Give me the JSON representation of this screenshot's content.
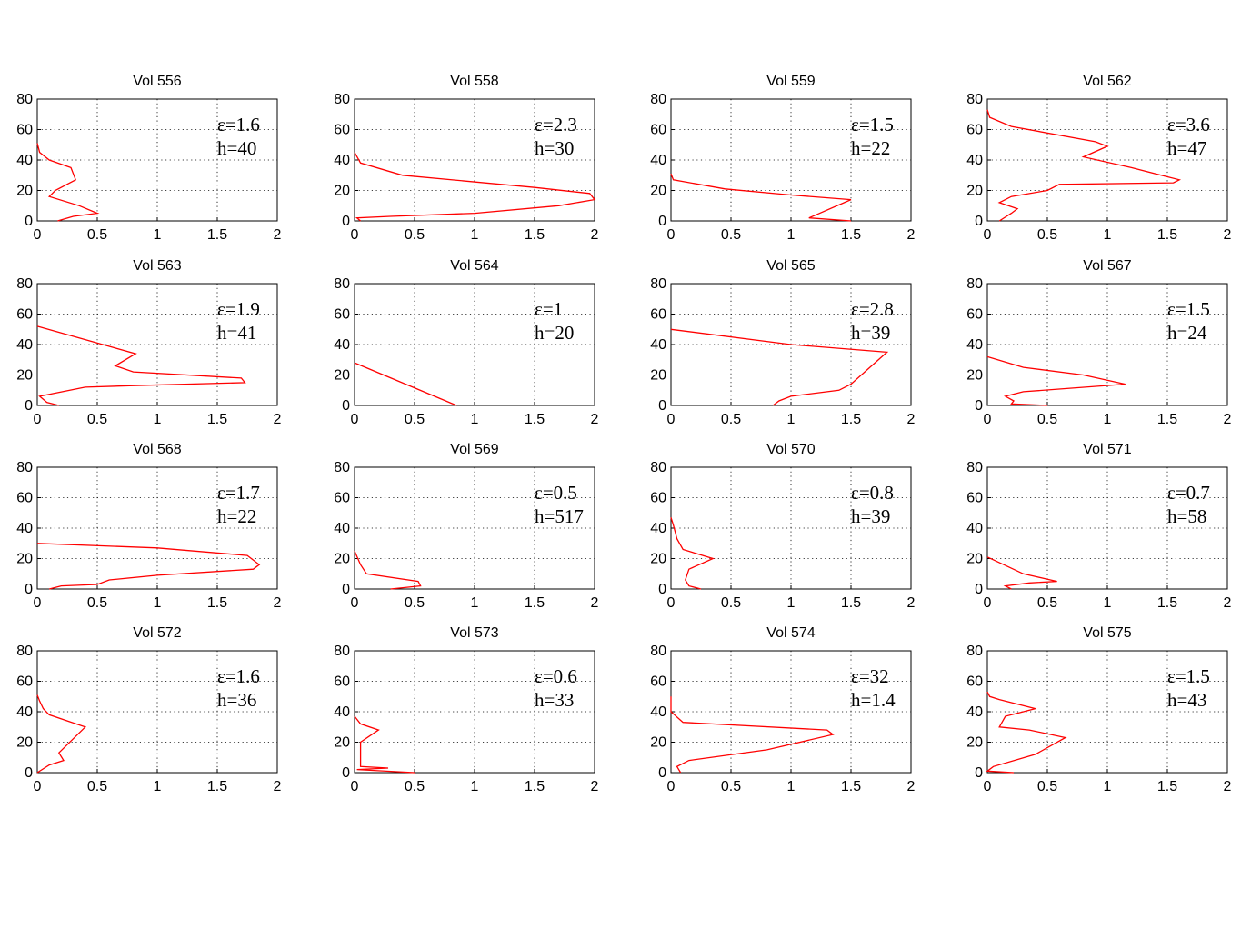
{
  "chart_data": [
    {
      "type": "line",
      "title": "Vol 556",
      "eps_label": "ε=1.6",
      "h_label": "h=40",
      "xlim": [
        0,
        2
      ],
      "ylim": [
        0,
        80
      ],
      "xticks": [
        "0",
        "0.5",
        "1",
        "1.5",
        "2"
      ],
      "yticks": [
        "0",
        "20",
        "40",
        "60",
        "80"
      ],
      "x": [
        0.17,
        0.3,
        0.5,
        0.35,
        0.1,
        0.15,
        0.32,
        0.28,
        0.1,
        0.02,
        0.0
      ],
      "y": [
        0,
        3,
        5,
        10,
        16,
        20,
        27,
        35,
        40,
        45,
        51
      ]
    },
    {
      "type": "line",
      "title": "Vol 558",
      "eps_label": "ε=2.3",
      "h_label": "h=30",
      "xlim": [
        0,
        2
      ],
      "ylim": [
        0,
        80
      ],
      "xticks": [
        "0",
        "0.5",
        "1",
        "1.5",
        "2"
      ],
      "yticks": [
        "0",
        "20",
        "40",
        "60",
        "80"
      ],
      "x": [
        0.05,
        0.02,
        0.3,
        1.0,
        1.7,
        2.0,
        1.96,
        1.5,
        0.4,
        0.05,
        0.0
      ],
      "y": [
        0,
        2,
        3,
        5,
        10,
        14,
        18,
        22,
        30,
        38,
        45
      ]
    },
    {
      "type": "line",
      "title": "Vol 559",
      "eps_label": "ε=1.5",
      "h_label": "h=22",
      "xlim": [
        0,
        2
      ],
      "ylim": [
        0,
        80
      ],
      "xticks": [
        "0",
        "0.5",
        "1",
        "1.5",
        "2"
      ],
      "yticks": [
        "0",
        "20",
        "40",
        "60",
        "80"
      ],
      "x": [
        1.5,
        1.15,
        1.5,
        1.0,
        0.45,
        0.02,
        0.0
      ],
      "y": [
        0,
        2,
        14,
        17,
        21,
        27,
        31
      ]
    },
    {
      "type": "line",
      "title": "Vol 562",
      "eps_label": "ε=3.6",
      "h_label": "h=47",
      "xlim": [
        0,
        2
      ],
      "ylim": [
        0,
        80
      ],
      "xticks": [
        "0",
        "0.5",
        "1",
        "1.5",
        "2"
      ],
      "yticks": [
        "0",
        "20",
        "40",
        "60",
        "80"
      ],
      "x": [
        0.1,
        0.2,
        0.25,
        0.1,
        0.2,
        0.5,
        0.6,
        1.55,
        1.6,
        1.2,
        0.8,
        1.0,
        0.9,
        0.2,
        0.02,
        0.0
      ],
      "y": [
        0,
        5,
        8,
        12,
        16,
        20,
        24,
        25,
        27,
        35,
        42,
        49,
        52,
        62,
        68,
        73
      ]
    },
    {
      "type": "line",
      "title": "Vol 563",
      "eps_label": "ε=1.9",
      "h_label": "h=41",
      "xlim": [
        0,
        2
      ],
      "ylim": [
        0,
        80
      ],
      "xticks": [
        "0",
        "0.5",
        "1",
        "1.5",
        "2"
      ],
      "yticks": [
        "0",
        "20",
        "40",
        "60",
        "80"
      ],
      "x": [
        0.18,
        0.08,
        0.02,
        0.4,
        0.8,
        1.73,
        1.7,
        0.8,
        0.65,
        0.82,
        0.0
      ],
      "y": [
        0,
        2,
        6,
        12,
        13,
        15,
        18,
        22,
        26,
        34,
        52
      ]
    },
    {
      "type": "line",
      "title": "Vol 564",
      "eps_label": "ε=1",
      "h_label": "h=20",
      "xlim": [
        0,
        2
      ],
      "ylim": [
        0,
        80
      ],
      "xticks": [
        "0",
        "0.5",
        "1",
        "1.5",
        "2"
      ],
      "yticks": [
        "0",
        "20",
        "40",
        "60",
        "80"
      ],
      "x": [
        0.85,
        0.0
      ],
      "y": [
        0,
        28
      ]
    },
    {
      "type": "line",
      "title": "Vol 565",
      "eps_label": "ε=2.8",
      "h_label": "h=39",
      "xlim": [
        0,
        2
      ],
      "ylim": [
        0,
        80
      ],
      "xticks": [
        "0",
        "0.5",
        "1",
        "1.5",
        "2"
      ],
      "yticks": [
        "0",
        "20",
        "40",
        "60",
        "80"
      ],
      "x": [
        0.85,
        0.9,
        1.0,
        1.4,
        1.5,
        1.8,
        1.0,
        0.0
      ],
      "y": [
        0,
        3,
        6,
        10,
        14,
        35,
        40,
        50
      ]
    },
    {
      "type": "line",
      "title": "Vol 567",
      "eps_label": "ε=1.5",
      "h_label": "h=24",
      "xlim": [
        0,
        2
      ],
      "ylim": [
        0,
        80
      ],
      "xticks": [
        "0",
        "0.5",
        "1",
        "1.5",
        "2"
      ],
      "yticks": [
        "0",
        "20",
        "40",
        "60",
        "80"
      ],
      "x": [
        0.5,
        0.2,
        0.22,
        0.15,
        0.3,
        1.15,
        0.8,
        0.3,
        0.0
      ],
      "y": [
        0,
        1,
        3,
        6,
        9,
        14,
        20,
        25,
        32
      ]
    },
    {
      "type": "line",
      "title": "Vol 568",
      "eps_label": "ε=1.7",
      "h_label": "h=22",
      "xlim": [
        0,
        2
      ],
      "ylim": [
        0,
        80
      ],
      "xticks": [
        "0",
        "0.5",
        "1",
        "1.5",
        "2"
      ],
      "yticks": [
        "0",
        "20",
        "40",
        "60",
        "80"
      ],
      "x": [
        0.1,
        0.2,
        0.5,
        0.6,
        1.0,
        1.8,
        1.85,
        1.75,
        1.0,
        0.0
      ],
      "y": [
        0,
        2,
        3,
        6,
        9,
        13,
        16,
        22,
        27,
        30
      ]
    },
    {
      "type": "line",
      "title": "Vol 569",
      "eps_label": "ε=0.5",
      "h_label": "h=517",
      "xlim": [
        0,
        2
      ],
      "ylim": [
        0,
        80
      ],
      "xticks": [
        "0",
        "0.5",
        "1",
        "1.5",
        "2"
      ],
      "yticks": [
        "0",
        "20",
        "40",
        "60",
        "80"
      ],
      "x": [
        0.3,
        0.55,
        0.53,
        0.1,
        0.05,
        0.0
      ],
      "y": [
        0,
        2,
        5,
        10,
        16,
        25
      ]
    },
    {
      "type": "line",
      "title": "Vol 570",
      "eps_label": "ε=0.8",
      "h_label": "h=39",
      "xlim": [
        0,
        2
      ],
      "ylim": [
        0,
        80
      ],
      "xticks": [
        "0",
        "0.5",
        "1",
        "1.5",
        "2"
      ],
      "yticks": [
        "0",
        "20",
        "40",
        "60",
        "80"
      ],
      "x": [
        0.25,
        0.15,
        0.12,
        0.15,
        0.35,
        0.1,
        0.05,
        0.02,
        0.0
      ],
      "y": [
        0,
        2,
        6,
        13,
        20,
        26,
        33,
        42,
        47
      ]
    },
    {
      "type": "line",
      "title": "Vol 571",
      "eps_label": "ε=0.7",
      "h_label": "h=58",
      "xlim": [
        0,
        2
      ],
      "ylim": [
        0,
        80
      ],
      "xticks": [
        "0",
        "0.5",
        "1",
        "1.5",
        "2"
      ],
      "yticks": [
        "0",
        "20",
        "40",
        "60",
        "80"
      ],
      "x": [
        0.2,
        0.15,
        0.35,
        0.58,
        0.3,
        0.0
      ],
      "y": [
        0,
        2,
        4,
        5,
        10,
        21
      ]
    },
    {
      "type": "line",
      "title": "Vol 572",
      "eps_label": "ε=1.6",
      "h_label": "h=36",
      "xlim": [
        0,
        2
      ],
      "ylim": [
        0,
        80
      ],
      "xticks": [
        "0",
        "0.5",
        "1",
        "1.5",
        "2"
      ],
      "yticks": [
        "0",
        "20",
        "40",
        "60",
        "80"
      ],
      "x": [
        0.0,
        0.1,
        0.22,
        0.18,
        0.4,
        0.1,
        0.05,
        0.02,
        0.0
      ],
      "y": [
        0,
        5,
        8,
        13,
        30,
        38,
        42,
        47,
        51
      ]
    },
    {
      "type": "line",
      "title": "Vol 573",
      "eps_label": "ε=0.6",
      "h_label": "h=33",
      "xlim": [
        0,
        2
      ],
      "ylim": [
        0,
        80
      ],
      "xticks": [
        "0",
        "0.5",
        "1",
        "1.5",
        "2"
      ],
      "yticks": [
        "0",
        "20",
        "40",
        "60",
        "80"
      ],
      "x": [
        0.5,
        0.02,
        0.28,
        0.05,
        0.05,
        0.2,
        0.05,
        0.0
      ],
      "y": [
        0,
        2,
        3,
        4,
        20,
        28,
        32,
        37
      ]
    },
    {
      "type": "line",
      "title": "Vol 574",
      "eps_label": "ε=32",
      "h_label": "h=1.4",
      "xlim": [
        0,
        2
      ],
      "ylim": [
        0,
        80
      ],
      "xticks": [
        "0",
        "0.5",
        "1",
        "1.5",
        "2"
      ],
      "yticks": [
        "0",
        "20",
        "40",
        "60",
        "80"
      ],
      "x": [
        0.08,
        0.05,
        0.15,
        0.8,
        1.35,
        1.3,
        0.1,
        0.0,
        0.0
      ],
      "y": [
        0,
        4,
        8,
        15,
        25,
        28,
        33,
        40,
        50
      ]
    },
    {
      "type": "line",
      "title": "Vol 575",
      "eps_label": "ε=1.5",
      "h_label": "h=43",
      "xlim": [
        0,
        2
      ],
      "ylim": [
        0,
        80
      ],
      "xticks": [
        "0",
        "0.5",
        "1",
        "1.5",
        "2"
      ],
      "yticks": [
        "0",
        "20",
        "40",
        "60",
        "80"
      ],
      "x": [
        0.22,
        0.0,
        0.05,
        0.4,
        0.65,
        0.35,
        0.1,
        0.15,
        0.4,
        0.1,
        0.02,
        0.0
      ],
      "y": [
        0,
        1,
        4,
        12,
        23,
        28,
        30,
        37,
        42,
        48,
        50,
        53
      ]
    }
  ]
}
